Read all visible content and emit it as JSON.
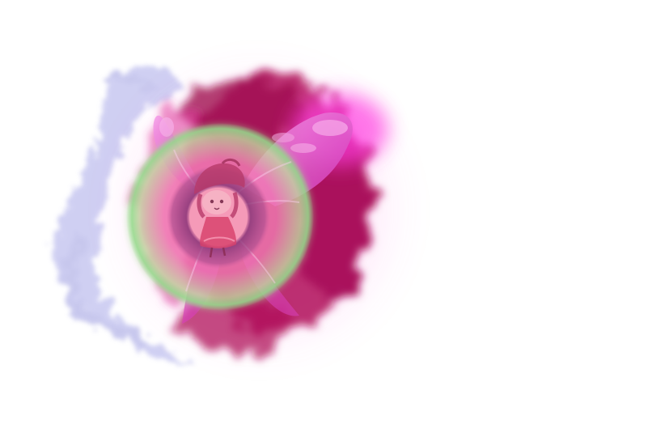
{
  "scene": {
    "kind": "magic-particle-effect",
    "elements": [
      "mist-plume",
      "magenta-smoke-burst",
      "butterfly-wings",
      "green-glow-ring",
      "purple-inner-ring",
      "pink-core",
      "fairy-character"
    ]
  },
  "colors": {
    "background": "#ffffff",
    "mist": "#9b9be0",
    "smoke": "#b0125a",
    "smoke_light": "#e0379a",
    "wing": "#e040c8",
    "wing_light": "#f59ce8",
    "ring_outer": "#93d98a",
    "ring_mid": "#f06aa8",
    "ring_inner": "#8a3a7a",
    "core": "#f59ab8",
    "fairy_hair": "#b83a6a",
    "fairy_dress": "#d8406a"
  }
}
